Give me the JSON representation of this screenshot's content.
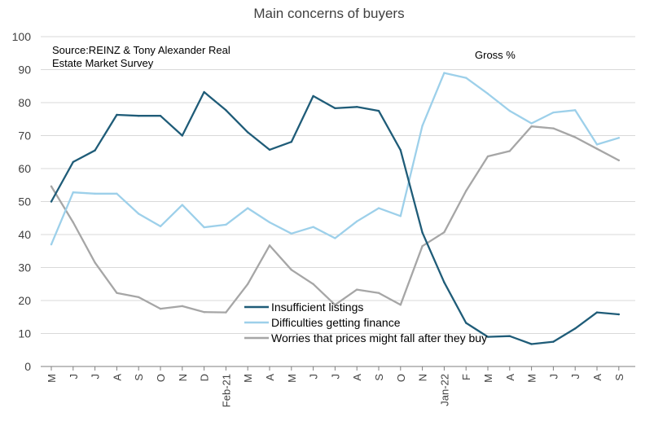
{
  "chart_data": {
    "type": "line",
    "title": "Main concerns of buyers",
    "source": "Source:REINZ & Tony Alexander Real Estate Market Survey",
    "source_lines": [
      "Source:REINZ & Tony Alexander Real",
      "Estate Market Survey"
    ],
    "unit_label": "Gross %",
    "xlabel": "",
    "ylabel": "",
    "ylim": [
      0,
      100
    ],
    "yticks": [
      0,
      10,
      20,
      30,
      40,
      50,
      60,
      70,
      80,
      90,
      100
    ],
    "grid": true,
    "legend_position": "bottom-center",
    "categories": [
      "M",
      "J",
      "J",
      "A",
      "S",
      "O",
      "N",
      "D",
      "Feb-21",
      "M",
      "A",
      "M",
      "J",
      "J",
      "A",
      "S",
      "O",
      "N",
      "Jan-22",
      "F",
      "M",
      "A",
      "M",
      "J",
      "J",
      "A",
      "S"
    ],
    "series": [
      {
        "name": "Insufficient listings",
        "color": "#1f5c78",
        "values": [
          50,
          62,
          65.5,
          76.3,
          76,
          76,
          70,
          83.2,
          77.7,
          71,
          65.7,
          68.1,
          82,
          78.3,
          78.7,
          77.5,
          65.6,
          40.6,
          25.5,
          13.2,
          9,
          9.2,
          6.8,
          7.5,
          11.5,
          16.4,
          15.8
        ]
      },
      {
        "name": "Difficulties getting finance",
        "color": "#9dd0ea",
        "values": [
          37,
          52.8,
          52.4,
          52.4,
          46.3,
          42.5,
          49,
          42.2,
          43,
          48,
          43.7,
          40.3,
          42.3,
          38.9,
          44,
          48,
          45.6,
          73,
          89,
          87.5,
          82.7,
          77.5,
          73.7,
          77,
          77.7,
          67.3,
          69.3
        ]
      },
      {
        "name": "Worries that prices might fall after they buy",
        "color": "#a6a6a6",
        "values": [
          54.6,
          43.7,
          31.5,
          22.3,
          21,
          17.5,
          18.3,
          16.5,
          16.4,
          25,
          36.7,
          29.3,
          25,
          18.7,
          23.3,
          22.3,
          18.7,
          36.5,
          40.7,
          53.2,
          63.7,
          65.3,
          72.8,
          72.2,
          69.5,
          66,
          62.5
        ]
      }
    ]
  }
}
